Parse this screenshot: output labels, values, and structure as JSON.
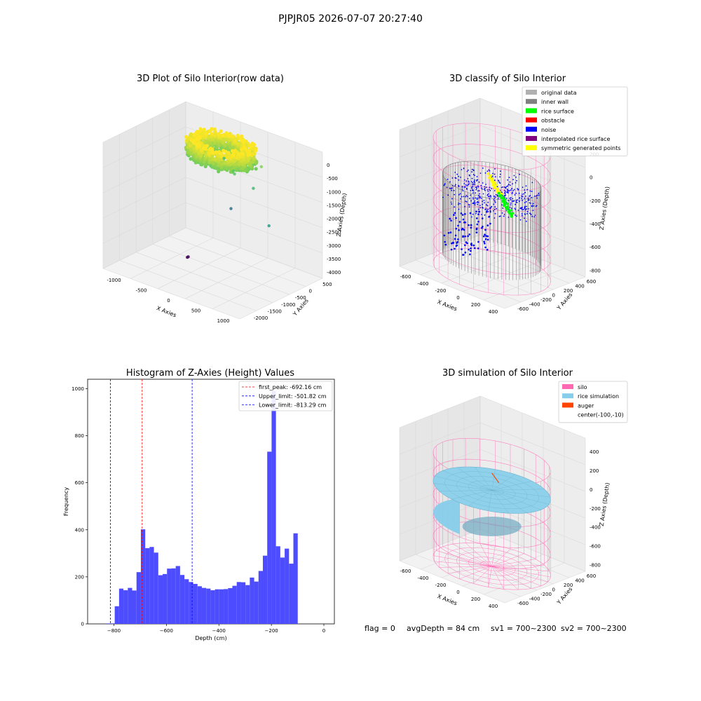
{
  "suptitle": "PJPJR05 2026-07-07 20:27:40",
  "status": {
    "flag": "flag = 0",
    "avg_depth": "avgDepth = 84 cm",
    "sv1": "sv1 = 700~2300",
    "sv2": "sv2 = 700~2300"
  },
  "colors": {
    "panel_pane": "#f2f2f2",
    "grid": "#d9d9d9",
    "histogram_bar": "#4d4dff",
    "first_peak_line": "#ff0000",
    "limit_line": "#0000ff",
    "silo_wire": "#ff69b4",
    "rice": "#87ceeb",
    "auger": "#ff4500"
  },
  "chart_data": [
    {
      "type": "scatter",
      "title": "3D Plot of Silo Interior(row data)",
      "xlabel": "X Axies",
      "ylabel": "Y Axies",
      "zlabel": "Z Axies (Depth)",
      "x_ticks": [
        "-1000",
        "-500",
        "0",
        "500",
        "1000"
      ],
      "y_ticks": [
        "500",
        "0",
        "-500",
        "-1000",
        "-1500",
        "-2000"
      ],
      "z_ticks": [
        "0",
        "-500",
        "-1000",
        "-1500",
        "-2000",
        "-2500",
        "-3000",
        "-3500",
        "-4000"
      ],
      "xlim": [
        -1200,
        1400
      ],
      "ylim": [
        -2200,
        800
      ],
      "zlim": [
        -4200,
        200
      ],
      "colormap": "viridis",
      "main_ring": {
        "center_x": -100,
        "center_y": -10,
        "outer_radius": 600,
        "inner_radius": 350,
        "z_top": -100,
        "z_bottom": -700
      },
      "outlier_points": [
        {
          "x": -420,
          "y": 700,
          "z": -1200
        },
        {
          "x": 200,
          "y": -100,
          "z": -950
        },
        {
          "x": 150,
          "y": -50,
          "z": -900
        },
        {
          "x": 520,
          "y": 260,
          "z": -650
        },
        {
          "x": 500,
          "y": 10,
          "z": -1300
        },
        {
          "x": 1180,
          "y": -720,
          "z": -1800
        },
        {
          "x": -120,
          "y": 380,
          "z": -2600
        },
        {
          "x": -470,
          "y": -500,
          "z": -4100
        },
        {
          "x": -500,
          "y": -480,
          "z": -4150
        }
      ]
    },
    {
      "type": "scatter",
      "title": "3D classify of Silo Interior",
      "xlabel": "X Axies",
      "ylabel": "Y Axies",
      "zlabel": "Z Axies (Depth)",
      "x_ticks": [
        "-600",
        "-400",
        "-200",
        "0",
        "200",
        "400"
      ],
      "y_ticks": [
        "600",
        "400",
        "200",
        "0",
        "-200",
        "-400",
        "-600"
      ],
      "z_ticks": [
        "200",
        "0",
        "-200",
        "-400",
        "-600",
        "-800"
      ],
      "xlim": [
        -700,
        500
      ],
      "ylim": [
        -700,
        700
      ],
      "zlim": [
        -900,
        300
      ],
      "legend_position": "top-right",
      "legend": [
        {
          "label": "original data",
          "color": "#b0b0b0"
        },
        {
          "label": "inner wall",
          "color": "#808080"
        },
        {
          "label": "rice surface",
          "color": "#00ff00"
        },
        {
          "label": "obstacle",
          "color": "#ff0000"
        },
        {
          "label": "noise",
          "color": "#0000ff"
        },
        {
          "label": "interpolated rice surface",
          "color": "#800080"
        },
        {
          "label": "symmetric generated points",
          "color": "#ffff00"
        }
      ],
      "silo": {
        "center_x": -100,
        "center_y": -10,
        "radius": 560,
        "z_top": 200,
        "z_bottom": -900
      }
    },
    {
      "type": "bar",
      "title": "Histogram of Z-Axies (Height) Values",
      "xlabel": "Depth (cm)",
      "ylabel": "Frequency",
      "xlim": [
        -900,
        40
      ],
      "ylim": [
        0,
        1040
      ],
      "x_ticks": [
        -800,
        -600,
        -400,
        -200,
        0
      ],
      "y_ticks": [
        0,
        200,
        400,
        600,
        800,
        1000
      ],
      "bin_start": -830,
      "bin_width": 16.6,
      "values": [
        2,
        2,
        75,
        150,
        143,
        153,
        142,
        220,
        402,
        322,
        327,
        303,
        207,
        212,
        235,
        236,
        246,
        208,
        190,
        178,
        170,
        160,
        153,
        150,
        143,
        147,
        147,
        148,
        152,
        162,
        178,
        177,
        165,
        197,
        180,
        225,
        290,
        732,
        990,
        330,
        282,
        320,
        256,
        385
      ],
      "legend_position": "top-right",
      "vlines": [
        {
          "name": "first_peak: -692.16 cm",
          "x": -692.16,
          "color": "#ff0000"
        },
        {
          "name": "Upper_limit: -501.82 cm",
          "x": -501.82,
          "color": "#0000ff"
        },
        {
          "name": "Lower_limit: -813.29 cm",
          "x": -813.29,
          "color": "#0000ff"
        }
      ]
    },
    {
      "type": "area",
      "title": "3D simulation of Silo Interior",
      "xlabel": "X Axies",
      "ylabel": "Y Axies",
      "zlabel": "Z Axies (Depth)",
      "x_ticks": [
        "-600",
        "-400",
        "-200",
        "0",
        "200",
        "400"
      ],
      "y_ticks": [
        "600",
        "400",
        "200",
        "0",
        "-200",
        "-400",
        "-600"
      ],
      "z_ticks": [
        "400",
        "200",
        "0",
        "-200",
        "-400",
        "-600",
        "-800"
      ],
      "xlim": [
        -700,
        500
      ],
      "ylim": [
        -700,
        700
      ],
      "zlim": [
        -900,
        500
      ],
      "legend_position": "top-right",
      "legend": [
        {
          "label": "silo",
          "color": "#ff69b4"
        },
        {
          "label": "rice simulation",
          "color": "#87ceeb"
        },
        {
          "label": "auger",
          "color": "#ff4500"
        },
        {
          "label": "center(-100,-10)",
          "color": ""
        }
      ],
      "silo": {
        "center_x": -100,
        "center_y": -10,
        "radius": 560,
        "z_top": 200,
        "z_bottom": -900
      },
      "rice_surface_depth": -84
    }
  ]
}
